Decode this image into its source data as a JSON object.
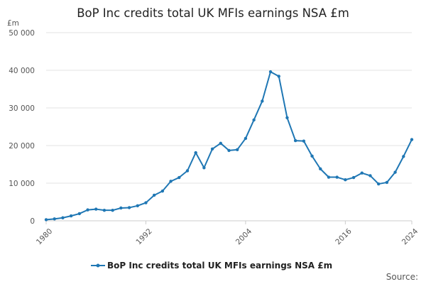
{
  "colors": {
    "series": "#1f77b4",
    "grid": "#e3e3e3",
    "text": "#222222",
    "muted": "#555555"
  },
  "chart_data": {
    "type": "line",
    "title": "BoP Inc credits total UK MFIs earnings NSA £m",
    "ylabel": "£m",
    "xlabel": "",
    "ylim": [
      0,
      50000
    ],
    "xlim": [
      1980,
      2024
    ],
    "grid": true,
    "legend": "bottom",
    "y_ticks": [
      {
        "value": 0,
        "label": "0"
      },
      {
        "value": 10000,
        "label": "10 000"
      },
      {
        "value": 20000,
        "label": "20 000"
      },
      {
        "value": 30000,
        "label": "30 000"
      },
      {
        "value": 40000,
        "label": "40 000"
      },
      {
        "value": 50000,
        "label": "50 000"
      }
    ],
    "x_ticks": [
      {
        "value": 1980,
        "label": "1980"
      },
      {
        "value": 1992,
        "label": "1992"
      },
      {
        "value": 2004,
        "label": "2004"
      },
      {
        "value": 2016,
        "label": "2016"
      },
      {
        "value": 2024,
        "label": "2024"
      }
    ],
    "series": [
      {
        "name": "BoP Inc credits total UK MFIs earnings NSA £m",
        "x": [
          1980,
          1981,
          1982,
          1983,
          1984,
          1985,
          1986,
          1987,
          1988,
          1989,
          1990,
          1991,
          1992,
          1993,
          1994,
          1995,
          1996,
          1997,
          1998,
          1999,
          2000,
          2001,
          2002,
          2003,
          2004,
          2005,
          2006,
          2007,
          2008,
          2009,
          2010,
          2011,
          2012,
          2013,
          2014,
          2015,
          2016,
          2017,
          2018,
          2019,
          2020,
          2021,
          2022,
          2023,
          2024
        ],
        "values": [
          300,
          500,
          800,
          1300,
          1900,
          2900,
          3100,
          2800,
          2800,
          3400,
          3500,
          4000,
          4800,
          6800,
          7900,
          10500,
          11500,
          13300,
          18100,
          14100,
          19100,
          20600,
          18700,
          18900,
          21900,
          26800,
          31800,
          39600,
          38400,
          27400,
          21300,
          21200,
          17200,
          13800,
          11600,
          11600,
          10900,
          11500,
          12700,
          12000,
          9800,
          10200,
          12900,
          17100,
          21600
        ]
      }
    ]
  },
  "legend": {
    "label": "BoP Inc credits total UK MFIs earnings NSA £m"
  },
  "source": {
    "label": "Source:"
  }
}
